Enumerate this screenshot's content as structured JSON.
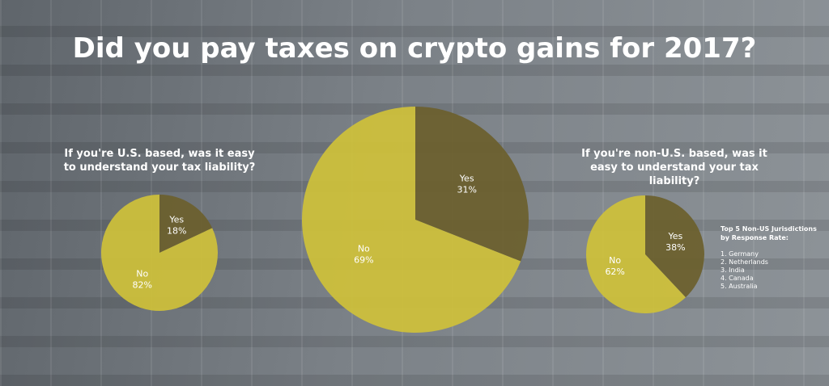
{
  "title": "Did you pay taxes on crypto gains for 2017?",
  "chart_data": [
    {
      "type": "pie",
      "title": "If you're U.S. based, was it easy to understand your tax liability?",
      "categories": [
        "Yes",
        "No"
      ],
      "values": [
        18,
        82
      ],
      "value_labels": [
        "18%",
        "82%"
      ],
      "colors": [
        "#6b5f2c",
        "#cfc13a"
      ]
    },
    {
      "type": "pie",
      "categories": [
        "Yes",
        "No"
      ],
      "values": [
        31,
        69
      ],
      "value_labels": [
        "31%",
        "69%"
      ],
      "colors": [
        "#6b5f2c",
        "#cfc13a"
      ]
    },
    {
      "type": "pie",
      "title": "If you're non-U.S. based, was it easy to understand your tax liability?",
      "categories": [
        "Yes",
        "No"
      ],
      "values": [
        38,
        62
      ],
      "value_labels": [
        "38%",
        "62%"
      ],
      "colors": [
        "#6b5f2c",
        "#cfc13a"
      ]
    }
  ],
  "jurisdictions": {
    "title": "Top 5 Non-US Jurisdictions by Response Rate:",
    "items": [
      "1. Germany",
      "2. Netherlands",
      "3. India",
      "4. Canada",
      "5. Australia"
    ]
  }
}
